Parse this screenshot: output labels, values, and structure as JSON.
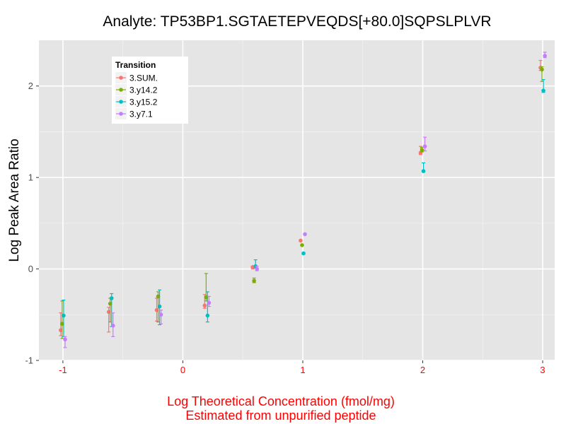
{
  "chart_data": {
    "type": "scatter",
    "title": "Analyte: TP53BP1.SGTAETEPVEQDS[+80.0]SQPSLPLVR",
    "xlabel_lines": [
      "Log Theoretical Concentration (fmol/mg)",
      "Estimated from unpurified peptide"
    ],
    "ylabel": "Log Peak Area Ratio",
    "xlim": [
      -1.2,
      3.1
    ],
    "ylim": [
      -1.0,
      2.5
    ],
    "x_ticks": [
      -1,
      0,
      1,
      2,
      3
    ],
    "y_ticks": [
      -1,
      0,
      1,
      2
    ],
    "grid": true,
    "legend": {
      "title": "Transition",
      "position": "top-left"
    },
    "x": [
      -1,
      -0.6,
      -0.2,
      0.2,
      0.6,
      1,
      2,
      3
    ],
    "series": [
      {
        "name": "3.SUM.",
        "color": "#f8766d",
        "y": [
          -0.67,
          -0.47,
          -0.45,
          -0.4,
          0.02,
          0.31,
          1.27,
          2.2
        ],
        "lo": [
          -0.73,
          -0.69,
          -0.57,
          -0.43,
          0.0,
          0.31,
          1.25,
          2.17
        ],
        "hi": [
          -0.48,
          -0.42,
          -0.32,
          -0.28,
          0.03,
          0.31,
          1.34,
          2.28
        ]
      },
      {
        "name": "3.y14.2",
        "color": "#7cae00",
        "y": [
          -0.6,
          -0.38,
          -0.3,
          -0.31,
          -0.13,
          0.26,
          1.3,
          2.18
        ],
        "lo": [
          -0.76,
          -0.58,
          -0.58,
          -0.35,
          -0.15,
          0.26,
          1.28,
          2.05
        ],
        "hi": [
          -0.35,
          -0.32,
          -0.25,
          -0.05,
          -0.1,
          0.26,
          1.33,
          2.21
        ]
      },
      {
        "name": "3.y15.2",
        "color": "#00bfc4",
        "y": [
          -0.51,
          -0.32,
          -0.41,
          -0.51,
          0.03,
          0.17,
          1.07,
          1.95
        ],
        "lo": [
          -0.74,
          -0.63,
          -0.61,
          -0.58,
          0.01,
          0.16,
          1.06,
          1.93
        ],
        "hi": [
          -0.34,
          -0.27,
          -0.23,
          -0.25,
          0.1,
          0.18,
          1.16,
          2.07
        ]
      },
      {
        "name": "3.y7.1",
        "color": "#c77cff",
        "y": [
          -0.77,
          -0.62,
          -0.5,
          -0.37,
          0.0,
          0.38,
          1.34,
          2.33
        ],
        "lo": [
          -0.86,
          -0.74,
          -0.6,
          -0.41,
          -0.02,
          0.38,
          1.29,
          2.31
        ],
        "hi": [
          -0.74,
          -0.48,
          -0.45,
          -0.3,
          0.03,
          0.38,
          1.44,
          2.37
        ]
      }
    ]
  }
}
